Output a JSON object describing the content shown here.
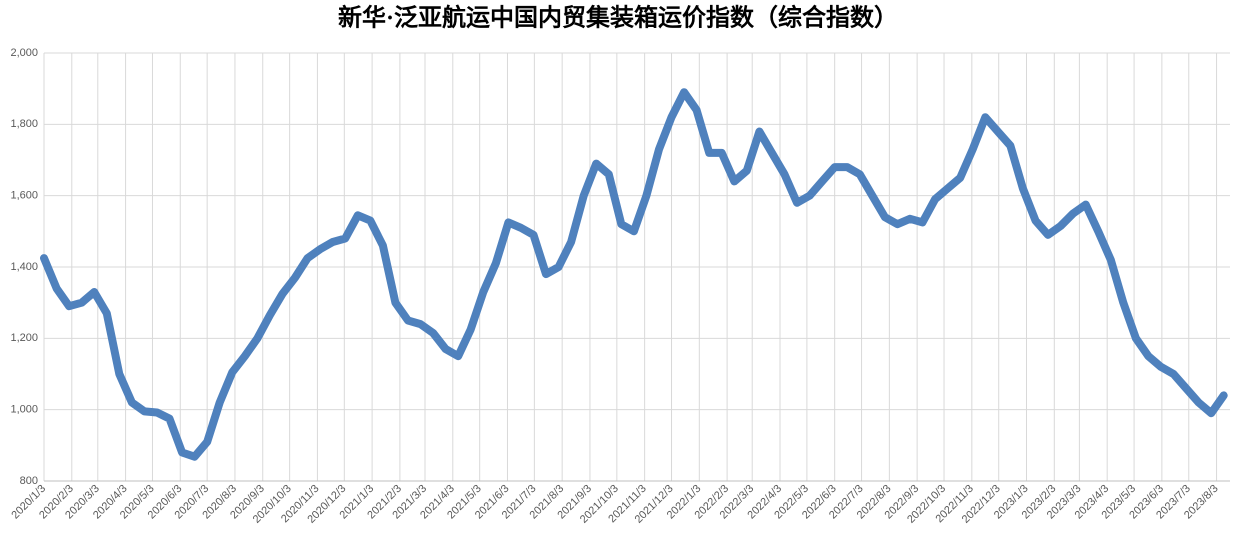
{
  "chart_data": {
    "type": "line",
    "title": "新华·泛亚航运中国内贸集装箱运价指数（综合指数）",
    "x": [
      "2020/1/3",
      "2020/1/17",
      "2020/1/31",
      "2020/2/14",
      "2020/2/28",
      "2020/3/13",
      "2020/3/27",
      "2020/4/10",
      "2020/4/24",
      "2020/5/8",
      "2020/5/22",
      "2020/6/5",
      "2020/6/19",
      "2020/7/3",
      "2020/7/17",
      "2020/7/31",
      "2020/8/14",
      "2020/8/28",
      "2020/9/11",
      "2020/9/25",
      "2020/10/9",
      "2020/10/23",
      "2020/11/6",
      "2020/11/20",
      "2020/12/4",
      "2020/12/18",
      "2021/1/1",
      "2021/1/15",
      "2021/1/29",
      "2021/2/12",
      "2021/2/26",
      "2021/3/12",
      "2021/3/26",
      "2021/4/9",
      "2021/4/23",
      "2021/5/7",
      "2021/5/21",
      "2021/6/4",
      "2021/6/18",
      "2021/7/2",
      "2021/7/16",
      "2021/7/30",
      "2021/8/13",
      "2021/8/27",
      "2021/9/10",
      "2021/9/24",
      "2021/10/8",
      "2021/10/22",
      "2021/11/5",
      "2021/11/19",
      "2021/12/3",
      "2021/12/17",
      "2021/12/31",
      "2022/1/14",
      "2022/1/28",
      "2022/2/11",
      "2022/2/25",
      "2022/3/11",
      "2022/3/25",
      "2022/4/8",
      "2022/4/22",
      "2022/5/6",
      "2022/5/20",
      "2022/6/3",
      "2022/6/17",
      "2022/7/1",
      "2022/7/15",
      "2022/7/29",
      "2022/8/12",
      "2022/8/26",
      "2022/9/9",
      "2022/9/23",
      "2022/10/7",
      "2022/10/21",
      "2022/11/4",
      "2022/11/18",
      "2022/12/2",
      "2022/12/16",
      "2022/12/30",
      "2023/1/13",
      "2023/1/27",
      "2023/2/10",
      "2023/2/24",
      "2023/3/10",
      "2023/3/24",
      "2023/4/7",
      "2023/4/21",
      "2023/5/5",
      "2023/5/19",
      "2023/6/2",
      "2023/6/16",
      "2023/6/30",
      "2023/7/14",
      "2023/7/28",
      "2023/8/11"
    ],
    "values": [
      1425,
      1340,
      1290,
      1300,
      1330,
      1270,
      1100,
      1020,
      995,
      992,
      975,
      880,
      868,
      910,
      1020,
      1105,
      1150,
      1200,
      1265,
      1325,
      1370,
      1425,
      1450,
      1470,
      1480,
      1545,
      1530,
      1460,
      1300,
      1250,
      1240,
      1215,
      1170,
      1150,
      1225,
      1330,
      1410,
      1525,
      1510,
      1490,
      1380,
      1400,
      1470,
      1600,
      1690,
      1660,
      1520,
      1500,
      1600,
      1730,
      1820,
      1890,
      1840,
      1720,
      1720,
      1640,
      1670,
      1780,
      1720,
      1660,
      1580,
      1600,
      1640,
      1680,
      1680,
      1660,
      1600,
      1540,
      1520,
      1535,
      1525,
      1590,
      1620,
      1650,
      1730,
      1820,
      1780,
      1740,
      1620,
      1530,
      1490,
      1515,
      1550,
      1575,
      1500,
      1420,
      1300,
      1200,
      1150,
      1120,
      1100,
      1060,
      1020,
      990,
      1040
    ],
    "color": "#4f81bd",
    "xlim": [
      "2020/1/3",
      "2023/8/18"
    ],
    "xticks": [
      "2020/1/3",
      "2020/2/3",
      "2020/3/3",
      "2020/4/3",
      "2020/5/3",
      "2020/6/3",
      "2020/7/3",
      "2020/8/3",
      "2020/9/3",
      "2020/10/3",
      "2020/11/3",
      "2020/12/3",
      "2021/1/3",
      "2021/2/3",
      "2021/3/3",
      "2021/4/3",
      "2021/5/3",
      "2021/6/3",
      "2021/7/3",
      "2021/8/3",
      "2021/9/3",
      "2021/10/3",
      "2021/11/3",
      "2021/12/3",
      "2022/1/3",
      "2022/2/3",
      "2022/3/3",
      "2022/4/3",
      "2022/5/3",
      "2022/6/3",
      "2022/7/3",
      "2022/8/3",
      "2022/9/3",
      "2022/10/3",
      "2022/11/3",
      "2022/12/3",
      "2023/1/3",
      "2023/2/3",
      "2023/3/3",
      "2023/4/3",
      "2023/5/3",
      "2023/6/3",
      "2023/7/3",
      "2023/8/3"
    ],
    "ylim": [
      800,
      2000
    ],
    "yticks": [
      800,
      {
        "value": 1000,
        "label": "1,000"
      },
      {
        "value": 1200,
        "label": "1,200"
      },
      {
        "value": 1400,
        "label": "1,400"
      },
      {
        "value": 1600,
        "label": "1,600"
      },
      {
        "value": 1800,
        "label": "1,800"
      },
      {
        "value": 2000,
        "label": "2,000"
      }
    ],
    "grid": true
  }
}
